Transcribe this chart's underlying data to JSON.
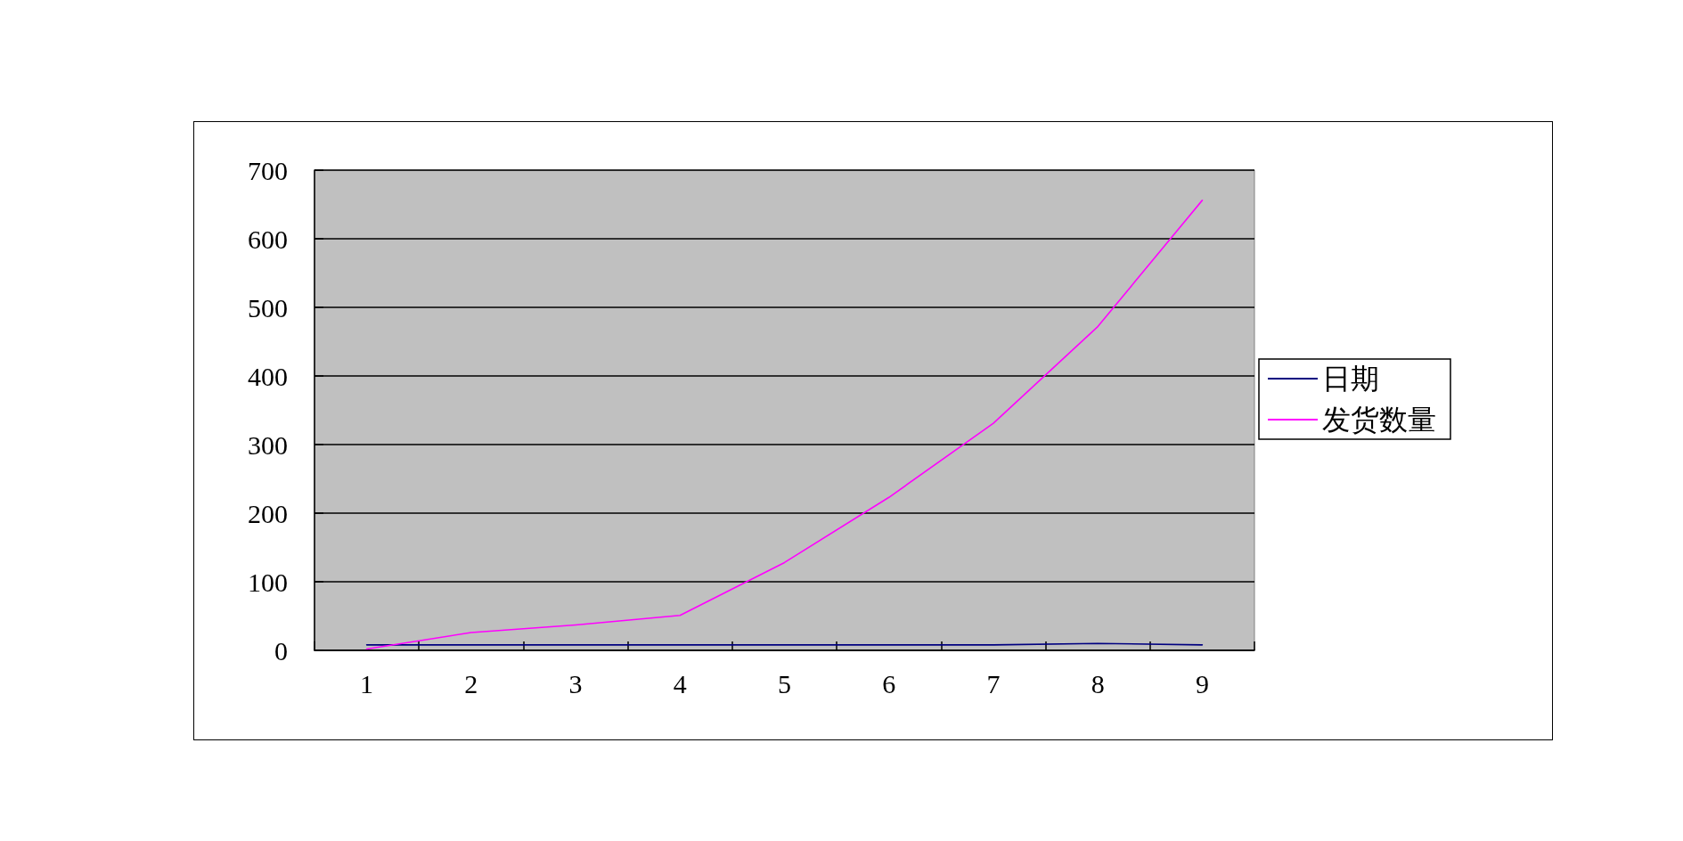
{
  "chart_data": {
    "type": "line",
    "categories": [
      "1",
      "2",
      "3",
      "4",
      "5",
      "6",
      "7",
      "8",
      "9"
    ],
    "series": [
      {
        "name": "日期",
        "color": "#000080",
        "values": [
          8,
          8,
          8,
          8,
          8,
          8,
          8,
          10,
          8
        ]
      },
      {
        "name": "发货数量",
        "color": "#ff00ff",
        "values": [
          2,
          26,
          37,
          51,
          128,
          223,
          331,
          472,
          656
        ]
      }
    ],
    "ylim": [
      0,
      700
    ],
    "yticks": [
      0,
      100,
      200,
      300,
      400,
      500,
      600,
      700
    ],
    "grid": "y",
    "legend": "right",
    "marker": "none",
    "line_style": "solid"
  }
}
